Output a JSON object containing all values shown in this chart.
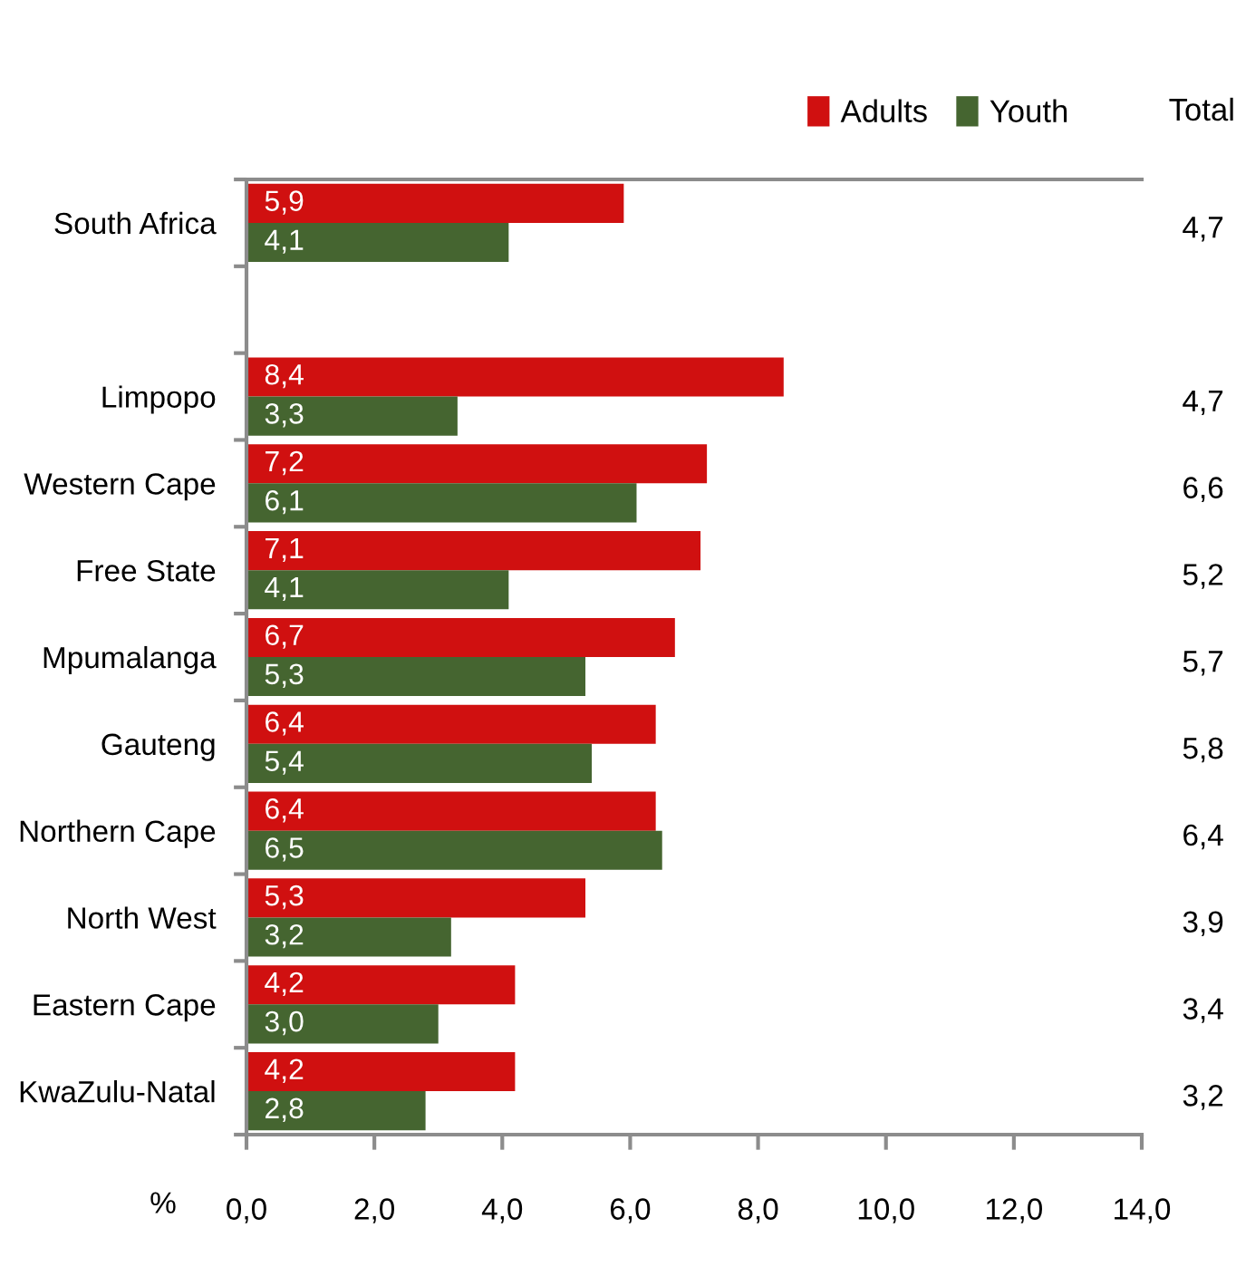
{
  "chart_data": {
    "type": "bar",
    "orientation": "horizontal",
    "categories": [
      "South Africa",
      null,
      "Limpopo",
      "Western Cape",
      "Free State",
      "Mpumalanga",
      "Gauteng",
      "Northern Cape",
      "North West",
      "Eastern Cape",
      "KwaZulu-Natal"
    ],
    "series": [
      {
        "name": "Adults",
        "color": "#d01010",
        "values": [
          5.9,
          null,
          8.4,
          7.2,
          7.1,
          6.7,
          6.4,
          6.4,
          5.3,
          4.2,
          4.2
        ],
        "value_labels": [
          "5,9",
          null,
          "8,4",
          "7,2",
          "7,1",
          "6,7",
          "6,4",
          "6,4",
          "5,3",
          "4,2",
          "4,2"
        ]
      },
      {
        "name": "Youth",
        "color": "#456530",
        "values": [
          4.1,
          null,
          3.3,
          6.1,
          4.1,
          5.3,
          5.4,
          6.5,
          3.2,
          3.0,
          2.8
        ],
        "value_labels": [
          "4,1",
          null,
          "3,3",
          "6,1",
          "4,1",
          "5,3",
          "5,4",
          "6,5",
          "3,2",
          "3,0",
          "2,8"
        ]
      }
    ],
    "annotations": [
      "Total",
      "4,7",
      "4,7",
      "6,6",
      "5,2",
      "5,7",
      "5,8",
      "6,4",
      "3,9",
      "3,4",
      "3,2"
    ],
    "xlabel": "%",
    "xlim": [
      0,
      14
    ],
    "xticks": [
      {
        "value": 0,
        "label": "0,0"
      },
      {
        "value": 2,
        "label": "2,0"
      },
      {
        "value": 4,
        "label": "4,0"
      },
      {
        "value": 6,
        "label": "6,0"
      },
      {
        "value": 8,
        "label": "8,0"
      },
      {
        "value": 10,
        "label": "10,0"
      },
      {
        "value": 12,
        "label": "12,0"
      },
      {
        "value": 14,
        "label": "14,0"
      }
    ],
    "legend": "top right"
  }
}
